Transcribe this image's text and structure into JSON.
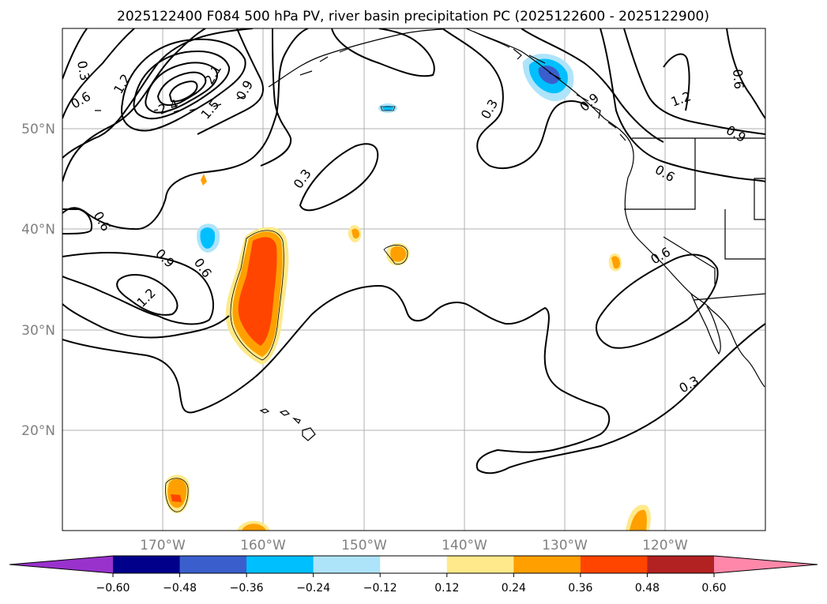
{
  "title": "2025122400 F084 500 hPa PV, river basin precipitation PC (2025122600 - 2025122900)",
  "axes": {
    "lon_labels": [
      "170°W",
      "160°W",
      "150°W",
      "140°W",
      "130°W",
      "120°W"
    ],
    "lat_labels": [
      "50°N",
      "40°N",
      "30°N",
      "20°N"
    ]
  },
  "contour_labels": [
    "0.3",
    "0.6",
    "1.2",
    "2.1",
    "2.4",
    "1.5",
    "0.9",
    "0.3",
    "0.6",
    "0.9",
    "0.6",
    "1.2",
    "0.3",
    "1.2",
    "0.9",
    "0.6",
    "0.6",
    "0.3",
    "0.6",
    "0.9"
  ],
  "colorbar": {
    "ticks": [
      "−0.60",
      "−0.48",
      "−0.36",
      "−0.24",
      "−0.12",
      "0.12",
      "0.24",
      "0.36",
      "0.48",
      "0.60"
    ],
    "colors": [
      "#9932cc",
      "#00008b",
      "#3a5fcd",
      "#00bfff",
      "#aee4fa",
      "#ffffff",
      "#ffe98a",
      "#ffa000",
      "#ff4500",
      "#b22222",
      "#ff88aa"
    ]
  }
}
